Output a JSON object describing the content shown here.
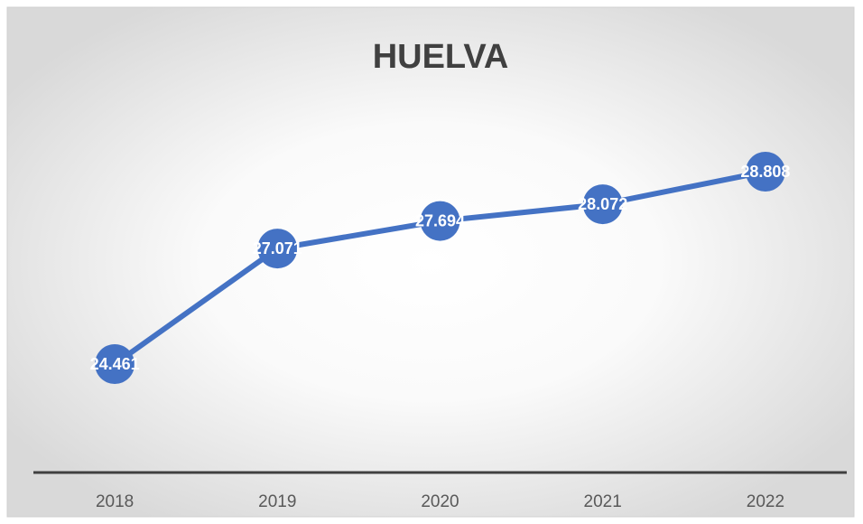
{
  "chart_data": {
    "type": "line",
    "title": "HUELVA",
    "categories": [
      "2018",
      "2019",
      "2020",
      "2021",
      "2022"
    ],
    "series": [
      {
        "name": "HUELVA",
        "color": "#4472c4",
        "values": [
          24461,
          27071,
          27694,
          28072,
          28808
        ],
        "value_labels": [
          "24.461",
          "27.071",
          "27.694",
          "28.072",
          "28.808"
        ]
      }
    ]
  }
}
